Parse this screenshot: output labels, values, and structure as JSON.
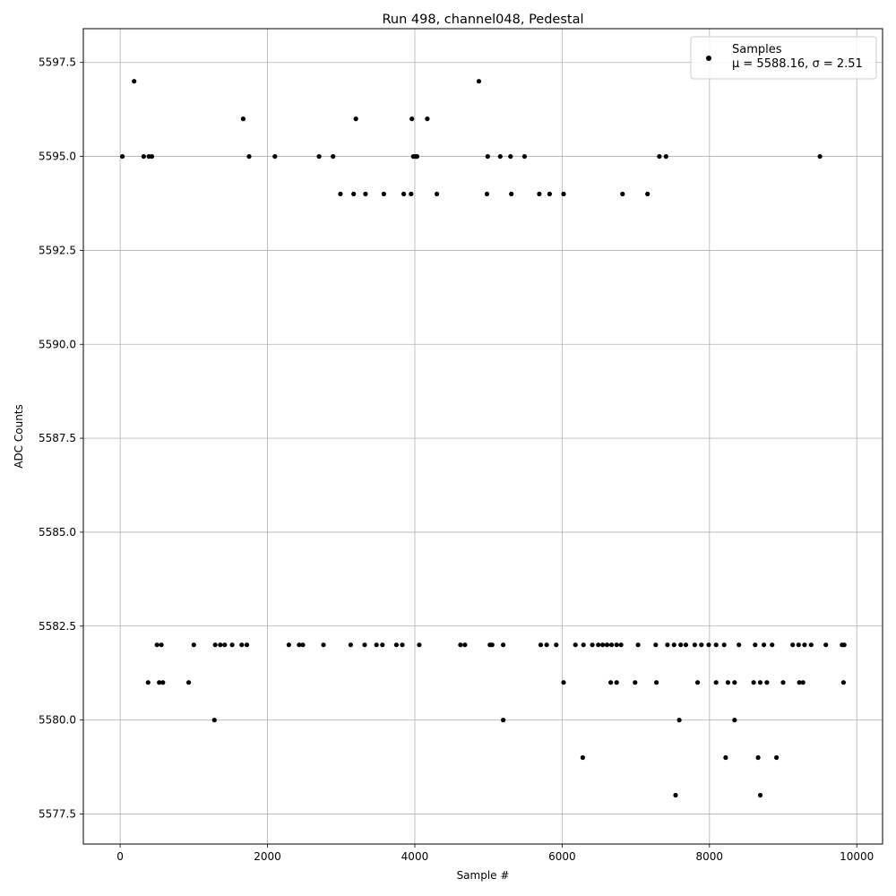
{
  "chart_data": {
    "type": "scatter",
    "title": "Run 498, channel048, Pedestal",
    "xlabel": "Sample #",
    "ylabel": "ADC Counts",
    "xlim": [
      -500,
      10350
    ],
    "ylim": [
      5576.7,
      5598.4
    ],
    "x_ticks": [
      0,
      2000,
      4000,
      6000,
      8000,
      10000
    ],
    "y_ticks": [
      5577.5,
      5580.0,
      5582.5,
      5585.0,
      5587.5,
      5590.0,
      5592.5,
      5595.0,
      5597.5
    ],
    "x_tick_labels": [
      "0",
      "2000",
      "4000",
      "6000",
      "8000",
      "10000"
    ],
    "y_tick_labels": [
      "5577.5",
      "5580.0",
      "5582.5",
      "5585.0",
      "5587.5",
      "5590.0",
      "5592.5",
      "5595.0",
      "5597.5"
    ],
    "grid": true,
    "legend_position": "upper-right",
    "series": [
      {
        "name": "Samples",
        "stats_label": "μ = 5588.16, σ = 2.51",
        "color": "#000000",
        "marker": "dot",
        "n_samples": 9850,
        "points": [
          [
            190,
            5597
          ],
          [
            4870,
            5597
          ],
          [
            1670,
            5596
          ],
          [
            3200,
            5596
          ],
          [
            3960,
            5596
          ],
          [
            4170,
            5596
          ],
          [
            30,
            5595
          ],
          [
            320,
            5595
          ],
          [
            390,
            5595
          ],
          [
            430,
            5595
          ],
          [
            1750,
            5595
          ],
          [
            2100,
            5595
          ],
          [
            2700,
            5595
          ],
          [
            2890,
            5595
          ],
          [
            3980,
            5595
          ],
          [
            4010,
            5595
          ],
          [
            4030,
            5595
          ],
          [
            4990,
            5595
          ],
          [
            5160,
            5595
          ],
          [
            5300,
            5595
          ],
          [
            5490,
            5595
          ],
          [
            7320,
            5595
          ],
          [
            7410,
            5595
          ],
          [
            9500,
            5595
          ],
          [
            2990,
            5594
          ],
          [
            3170,
            5594
          ],
          [
            3330,
            5594
          ],
          [
            3580,
            5594
          ],
          [
            3850,
            5594
          ],
          [
            3950,
            5594
          ],
          [
            4300,
            5594
          ],
          [
            4980,
            5594
          ],
          [
            5310,
            5594
          ],
          [
            5690,
            5594
          ],
          [
            5830,
            5594
          ],
          [
            6020,
            5594
          ],
          [
            6820,
            5594
          ],
          [
            7160,
            5594
          ],
          [
            1280,
            5580
          ],
          [
            5200,
            5580
          ],
          [
            7590,
            5580
          ],
          [
            8340,
            5580
          ],
          [
            6280,
            5579
          ],
          [
            8220,
            5579
          ],
          [
            8660,
            5579
          ],
          [
            8910,
            5579
          ],
          [
            7540,
            5578
          ],
          [
            8690,
            5578
          ],
          [
            380,
            5581
          ],
          [
            530,
            5581
          ],
          [
            580,
            5581
          ],
          [
            930,
            5581
          ],
          [
            6020,
            5581
          ],
          [
            6660,
            5581
          ],
          [
            6740,
            5581
          ],
          [
            6990,
            5581
          ],
          [
            7280,
            5581
          ],
          [
            7840,
            5581
          ],
          [
            8090,
            5581
          ],
          [
            8250,
            5581
          ],
          [
            8340,
            5581
          ],
          [
            8600,
            5581
          ],
          [
            8690,
            5581
          ],
          [
            8780,
            5581
          ],
          [
            9000,
            5581
          ],
          [
            9220,
            5581
          ],
          [
            9270,
            5581
          ],
          [
            9820,
            5581
          ],
          [
            500,
            5582
          ],
          [
            560,
            5582
          ],
          [
            1000,
            5582
          ],
          [
            1290,
            5582
          ],
          [
            1360,
            5582
          ],
          [
            1420,
            5582
          ],
          [
            1520,
            5582
          ],
          [
            1650,
            5582
          ],
          [
            1720,
            5582
          ],
          [
            2290,
            5582
          ],
          [
            2430,
            5582
          ],
          [
            2480,
            5582
          ],
          [
            2760,
            5582
          ],
          [
            3130,
            5582
          ],
          [
            3320,
            5582
          ],
          [
            3480,
            5582
          ],
          [
            3560,
            5582
          ],
          [
            3750,
            5582
          ],
          [
            3830,
            5582
          ],
          [
            4060,
            5582
          ],
          [
            4620,
            5582
          ],
          [
            4680,
            5582
          ],
          [
            5020,
            5582
          ],
          [
            5050,
            5582
          ],
          [
            5200,
            5582
          ],
          [
            5710,
            5582
          ],
          [
            5790,
            5582
          ],
          [
            5920,
            5582
          ],
          [
            6180,
            5582
          ],
          [
            6290,
            5582
          ],
          [
            6410,
            5582
          ],
          [
            6490,
            5582
          ],
          [
            6550,
            5582
          ],
          [
            6610,
            5582
          ],
          [
            6670,
            5582
          ],
          [
            6740,
            5582
          ],
          [
            6800,
            5582
          ],
          [
            7030,
            5582
          ],
          [
            7270,
            5582
          ],
          [
            7430,
            5582
          ],
          [
            7520,
            5582
          ],
          [
            7610,
            5582
          ],
          [
            7680,
            5582
          ],
          [
            7800,
            5582
          ],
          [
            7890,
            5582
          ],
          [
            7990,
            5582
          ],
          [
            8090,
            5582
          ],
          [
            8200,
            5582
          ],
          [
            8400,
            5582
          ],
          [
            8620,
            5582
          ],
          [
            8740,
            5582
          ],
          [
            8850,
            5582
          ],
          [
            9130,
            5582
          ],
          [
            9210,
            5582
          ],
          [
            9290,
            5582
          ],
          [
            9380,
            5582
          ],
          [
            9580,
            5582
          ],
          [
            9800,
            5582
          ],
          [
            9830,
            5582
          ]
        ]
      }
    ]
  }
}
